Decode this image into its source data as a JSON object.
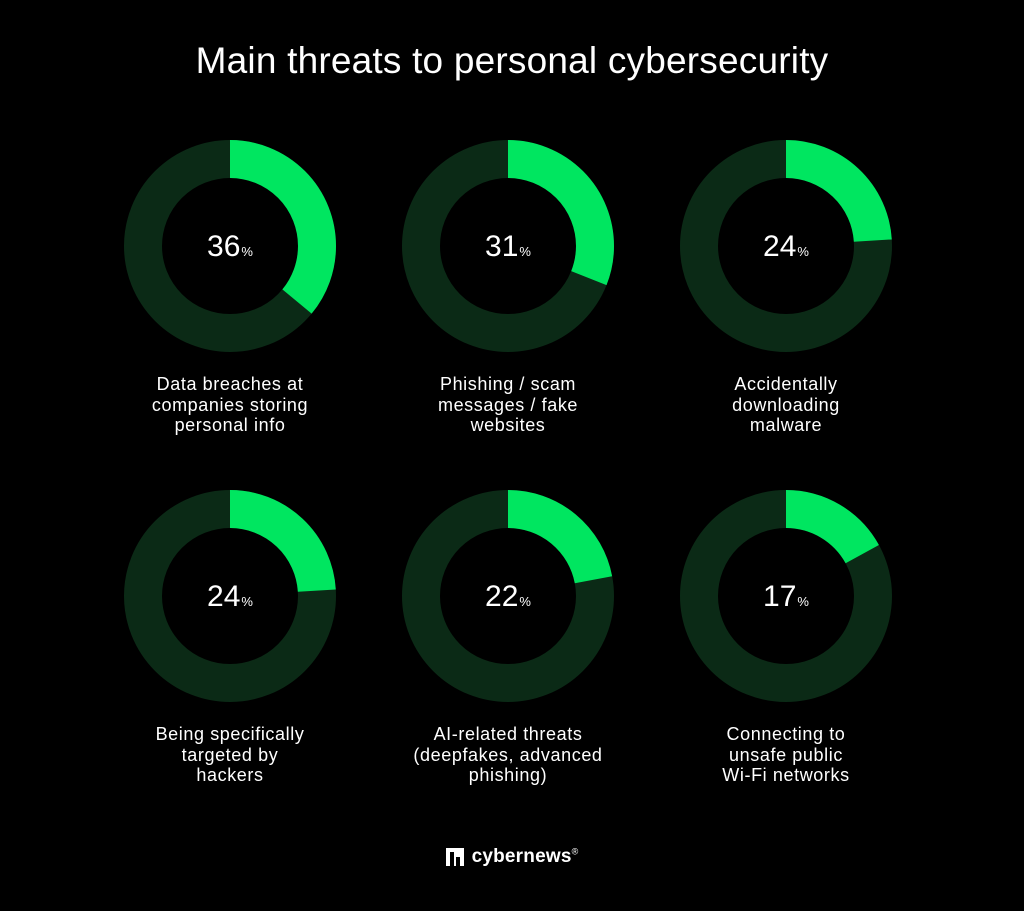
{
  "title": "Main threats to personal cybersecurity",
  "brand": {
    "name": "cybernews",
    "mark": "®",
    "icon": "cybernews-logo-icon"
  },
  "colors": {
    "background": "#000000",
    "accent": "#00e660",
    "track": "#0b2a16",
    "text": "#ffffff"
  },
  "chart_data": {
    "type": "pie",
    "variant": "donut-grid",
    "title": "Main threats to personal cybersecurity",
    "unit": "%",
    "categories": [
      "Data breaches at companies storing personal info",
      "Phishing / scam messages / fake websites",
      "Accidentally downloading malware",
      "Being specifically targeted by hackers",
      "AI-related threats (deepfakes, advanced phishing)",
      "Connecting to unsafe public Wi-Fi networks"
    ],
    "values": [
      36,
      31,
      24,
      24,
      22,
      17
    ],
    "label_lines": [
      [
        "Data breaches at",
        "companies storing",
        "personal info"
      ],
      [
        "Phishing / scam",
        "messages / fake",
        "websites"
      ],
      [
        "Accidentally",
        "downloading",
        "malware"
      ],
      [
        "Being specifically",
        "targeted by",
        "hackers"
      ],
      [
        "AI-related threats",
        "(deepfakes, advanced",
        "phishing)"
      ],
      [
        "Connecting to",
        "unsafe public",
        "Wi-Fi networks"
      ]
    ]
  }
}
